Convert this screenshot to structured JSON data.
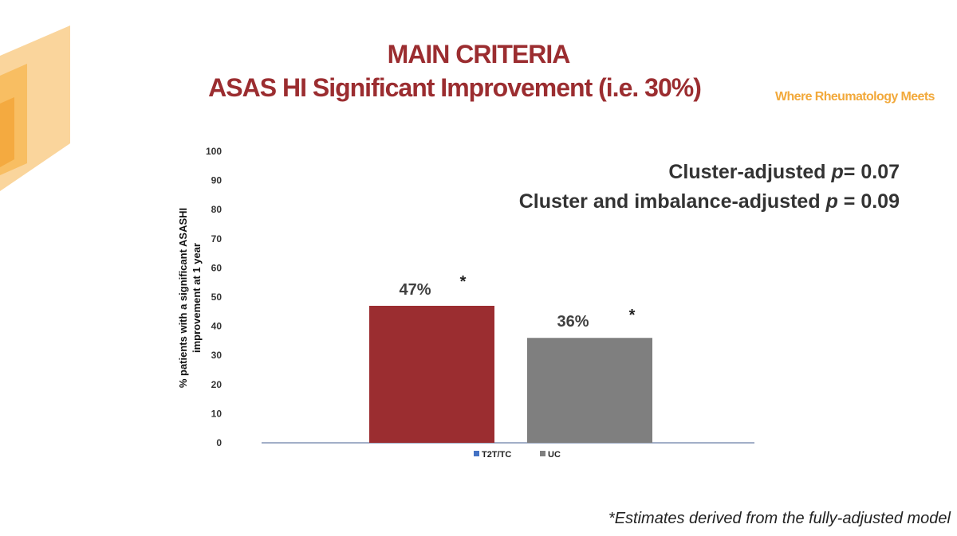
{
  "slide": {
    "title_line1": "MAIN CRITERIA",
    "title_line2": "ASAS HI Significant Improvement (i.e. 30%)",
    "tagline": "Where Rheumatology Meets",
    "pvalue_line1": "Cluster-adjusted p= 0.07",
    "pvalue_line2": "Cluster and imbalance-adjusted p = 0.09",
    "footnote": "*Estimates derived from the fully-adjusted model"
  },
  "colors": {
    "title": "#9b2d30",
    "tagline": "#f2a93b",
    "deco_orange": "#f6b34a"
  },
  "chart_data": {
    "type": "bar",
    "categories": [
      "T2T/TC",
      "UC"
    ],
    "values": [
      47,
      36
    ],
    "data_labels": [
      "47%",
      "36%"
    ],
    "markers": [
      "*",
      "*"
    ],
    "bar_colors": [
      "#9b2d30",
      "#7f7f7f"
    ],
    "legend": [
      {
        "name": "T2T/TC",
        "color": "#4472c4"
      },
      {
        "name": "UC",
        "color": "#7f7f7f"
      }
    ],
    "legend_position": "bottom",
    "ylabel": "% patients with a significant ASASHI improvement at 1 year",
    "xlabel": "",
    "ylim": [
      0,
      100
    ],
    "yticks": [
      0,
      10,
      20,
      30,
      40,
      50,
      60,
      70,
      80,
      90,
      100
    ],
    "grid": false
  }
}
